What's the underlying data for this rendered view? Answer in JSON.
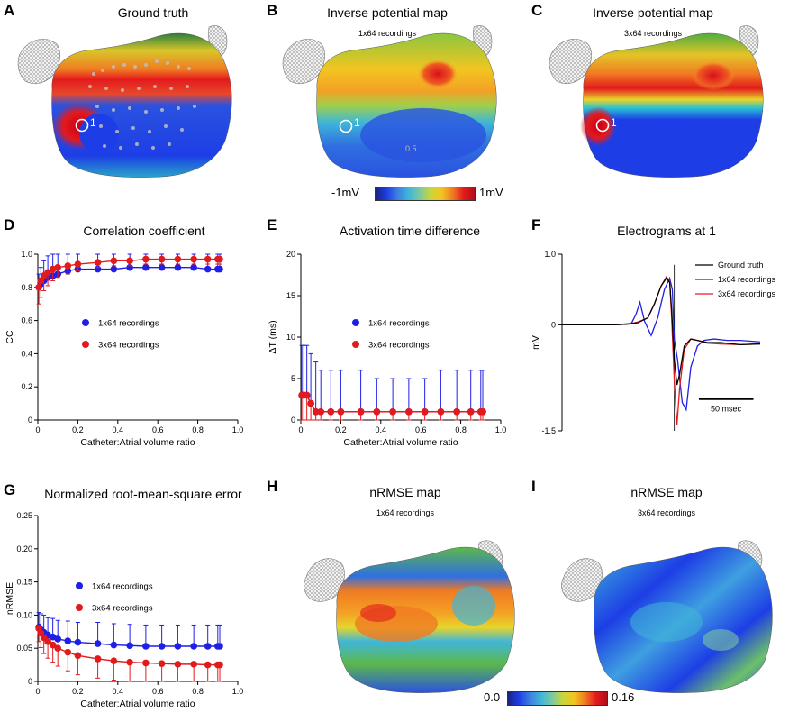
{
  "panels": {
    "A": {
      "label": "A",
      "title": "Ground truth",
      "marker": "1"
    },
    "B": {
      "label": "B",
      "title": "Inverse potential map",
      "subtitle": "1x64 recordings",
      "marker": "1",
      "annotation": "0.5"
    },
    "C": {
      "label": "C",
      "title": "Inverse potential map",
      "subtitle": "3x64 recordings",
      "marker": "1"
    },
    "D": {
      "label": "D",
      "title": "Correlation coefficient"
    },
    "E": {
      "label": "E",
      "title": "Activation time difference"
    },
    "F": {
      "label": "F",
      "title": "Electrograms at 1",
      "scalebar": "50 msec"
    },
    "G": {
      "label": "G",
      "title": "Normalized root-mean-square error"
    },
    "H": {
      "label": "H",
      "title": "nRMSE map",
      "subtitle": "1x64 recordings"
    },
    "I": {
      "label": "I",
      "title": "nRMSE map",
      "subtitle": "3x64 recordings"
    }
  },
  "colorbar_top": {
    "min_label": "-1mV",
    "max_label": "1mV"
  },
  "colorbar_bottom": {
    "min_label": "0.0",
    "max_label": "0.16"
  },
  "colors": {
    "blue": "#1f1fe6",
    "red": "#e31a1c",
    "black": "#000000"
  },
  "chart_data": [
    {
      "id": "D",
      "type": "line",
      "title": "Correlation coefficient",
      "xlabel": "Catheter:Atrial volume ratio",
      "ylabel": "CC",
      "xlim": [
        0,
        1.0
      ],
      "ylim": [
        0,
        1.0
      ],
      "xticks": [
        "0",
        "0.2",
        "0.4",
        "0.6",
        "0.8",
        "1.0"
      ],
      "yticks": [
        "0",
        "0.2",
        "0.4",
        "0.6",
        "0.8",
        "1.0"
      ],
      "x": [
        0.005,
        0.015,
        0.03,
        0.05,
        0.075,
        0.1,
        0.15,
        0.2,
        0.3,
        0.38,
        0.46,
        0.54,
        0.62,
        0.7,
        0.78,
        0.85,
        0.9,
        0.91
      ],
      "series": [
        {
          "name": "1x64 recordings",
          "color": "#1f1fe6",
          "values": [
            0.8,
            0.82,
            0.84,
            0.86,
            0.87,
            0.88,
            0.9,
            0.91,
            0.91,
            0.91,
            0.92,
            0.92,
            0.92,
            0.92,
            0.92,
            0.91,
            0.91,
            0.91
          ],
          "errors": [
            0.08,
            0.1,
            0.12,
            0.13,
            0.15,
            0.16,
            0.16,
            0.15,
            0.15,
            0.15,
            0.15,
            0.15,
            0.15,
            0.15,
            0.15,
            0.15,
            0.14,
            0.14
          ]
        },
        {
          "name": "3x64 recordings",
          "color": "#e31a1c",
          "values": [
            0.8,
            0.84,
            0.87,
            0.89,
            0.91,
            0.92,
            0.93,
            0.94,
            0.95,
            0.96,
            0.96,
            0.97,
            0.97,
            0.97,
            0.97,
            0.97,
            0.97,
            0.97
          ],
          "errors": [
            0.1,
            0.1,
            0.09,
            0.08,
            0.07,
            0.06,
            0.05,
            0.04,
            0.03,
            0.03,
            0.03,
            0.03,
            0.03,
            0.03,
            0.03,
            0.03,
            0.03,
            0.03
          ]
        }
      ]
    },
    {
      "id": "E",
      "type": "line",
      "title": "Activation time difference",
      "xlabel": "Catheter:Atrial volume ratio",
      "ylabel": "ΔT (ms)",
      "xlim": [
        0,
        1.0
      ],
      "ylim": [
        0,
        20
      ],
      "xticks": [
        "0",
        "0.2",
        "0.4",
        "0.6",
        "0.8",
        "1.0"
      ],
      "yticks": [
        "0",
        "5",
        "10",
        "15",
        "20"
      ],
      "x": [
        0.005,
        0.015,
        0.03,
        0.05,
        0.075,
        0.1,
        0.15,
        0.2,
        0.3,
        0.38,
        0.46,
        0.54,
        0.62,
        0.7,
        0.78,
        0.85,
        0.9,
        0.91
      ],
      "series": [
        {
          "name": "1x64 recordings",
          "color": "#1f1fe6",
          "values": [
            3,
            3,
            3,
            2,
            1,
            1,
            1,
            1,
            1,
            1,
            1,
            1,
            1,
            1,
            1,
            1,
            1,
            1
          ],
          "errors": [
            6,
            6,
            6,
            6,
            6,
            5,
            5,
            5,
            5,
            4,
            4,
            4,
            4,
            5,
            5,
            5,
            5,
            5
          ]
        },
        {
          "name": "3x64 recordings",
          "color": "#e31a1c",
          "values": [
            3,
            3,
            3,
            2,
            1,
            1,
            1,
            1,
            1,
            1,
            1,
            1,
            1,
            1,
            1,
            1,
            1,
            1
          ],
          "errors": [
            6,
            6,
            4,
            3,
            1,
            1,
            1,
            1,
            1,
            1,
            1,
            1,
            1,
            1,
            1,
            1,
            1,
            1
          ]
        }
      ]
    },
    {
      "id": "F",
      "type": "line",
      "title": "Electrograms at 1",
      "ylabel": "mV",
      "ylim": [
        -1.5,
        1.0
      ],
      "yticks": [
        "-1.5",
        "0",
        "1.0"
      ],
      "series": [
        {
          "name": "Ground truth",
          "color": "#000000",
          "x": [
            0,
            80,
            100,
            115,
            130,
            140,
            150,
            158,
            163,
            166,
            170,
            174,
            178,
            185,
            195,
            205,
            220,
            240,
            270,
            300
          ],
          "values": [
            0,
            0,
            0.01,
            0.03,
            0.1,
            0.3,
            0.55,
            0.66,
            0.6,
            0.2,
            -0.5,
            -0.85,
            -0.7,
            -0.3,
            -0.2,
            -0.22,
            -0.25,
            -0.25,
            -0.28,
            -0.27
          ]
        },
        {
          "name": "1x64 recordings",
          "color": "#1f1fe6",
          "x": [
            0,
            80,
            105,
            112,
            118,
            125,
            135,
            145,
            155,
            163,
            167,
            170,
            175,
            182,
            188,
            195,
            205,
            215,
            230,
            250,
            270,
            300
          ],
          "values": [
            0,
            0,
            0.02,
            0.15,
            0.32,
            0.05,
            -0.15,
            0.1,
            0.5,
            0.66,
            0.5,
            -0.2,
            -0.5,
            -1.1,
            -1.2,
            -0.6,
            -0.3,
            -0.22,
            -0.2,
            -0.22,
            -0.22,
            -0.24
          ]
        },
        {
          "name": "3x64 recordings",
          "color": "#e31a1c",
          "x": [
            0,
            80,
            100,
            115,
            130,
            140,
            150,
            158,
            163,
            166,
            170,
            174,
            178,
            185,
            195,
            205,
            220,
            240,
            270,
            300
          ],
          "values": [
            0,
            0,
            0.01,
            0.04,
            0.1,
            0.3,
            0.55,
            0.68,
            0.62,
            0.1,
            -0.8,
            -1.42,
            -0.9,
            -0.35,
            -0.2,
            -0.22,
            -0.26,
            -0.27,
            -0.28,
            -0.27
          ]
        }
      ]
    },
    {
      "id": "G",
      "type": "line",
      "title": "Normalized root-mean-square error",
      "xlabel": "Catheter:Atrial volume ratio",
      "ylabel": "nRMSE",
      "xlim": [
        0,
        1.0
      ],
      "ylim": [
        0,
        0.25
      ],
      "xticks": [
        "0",
        "0.2",
        "0.4",
        "0.6",
        "0.8",
        "1.0"
      ],
      "yticks": [
        "0",
        "0.05",
        "0.10",
        "0.15",
        "0.20",
        "0.25"
      ],
      "x": [
        0.005,
        0.015,
        0.03,
        0.05,
        0.075,
        0.1,
        0.15,
        0.2,
        0.3,
        0.38,
        0.46,
        0.54,
        0.62,
        0.7,
        0.78,
        0.85,
        0.9,
        0.91
      ],
      "series": [
        {
          "name": "1x64 recordings",
          "color": "#1f1fe6",
          "values": [
            0.082,
            0.078,
            0.074,
            0.07,
            0.067,
            0.064,
            0.061,
            0.059,
            0.057,
            0.055,
            0.054,
            0.053,
            0.053,
            0.053,
            0.053,
            0.053,
            0.053,
            0.053
          ],
          "errors": [
            0.022,
            0.024,
            0.026,
            0.026,
            0.028,
            0.028,
            0.03,
            0.03,
            0.032,
            0.032,
            0.032,
            0.032,
            0.032,
            0.032,
            0.032,
            0.032,
            0.032,
            0.032
          ]
        },
        {
          "name": "3x64 recordings",
          "color": "#e31a1c",
          "values": [
            0.08,
            0.073,
            0.066,
            0.06,
            0.055,
            0.05,
            0.044,
            0.039,
            0.034,
            0.031,
            0.029,
            0.028,
            0.027,
            0.026,
            0.026,
            0.025,
            0.025,
            0.025
          ],
          "errors": [
            0.02,
            0.022,
            0.024,
            0.025,
            0.026,
            0.027,
            0.028,
            0.029,
            0.029,
            0.029,
            0.029,
            0.029,
            0.029,
            0.029,
            0.029,
            0.029,
            0.029,
            0.029
          ]
        }
      ]
    }
  ]
}
